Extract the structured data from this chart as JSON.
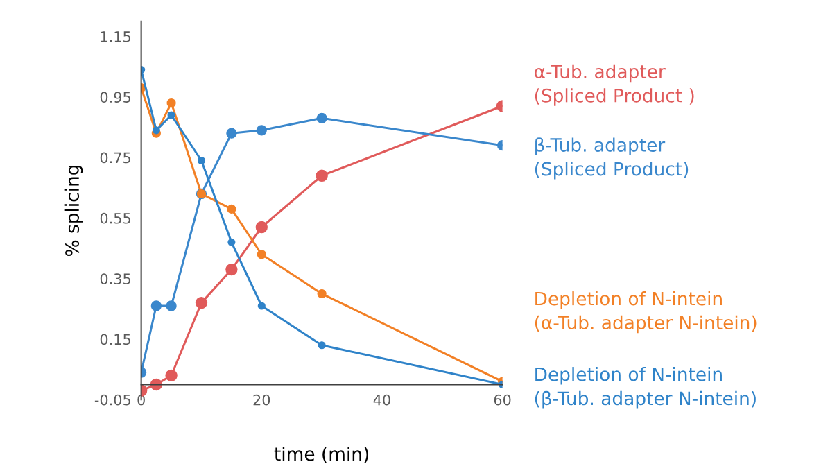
{
  "chart_data": {
    "type": "line",
    "xlabel": "time (min)",
    "ylabel": "% splicing",
    "x": [
      0,
      2.5,
      5,
      10,
      15,
      20,
      30,
      60
    ],
    "series": [
      {
        "name": "α-Tub. adapter\n(Spliced Product )",
        "color": "#e05a5a",
        "values": [
          -0.02,
          0.0,
          0.03,
          0.27,
          0.38,
          0.52,
          0.69,
          0.92
        ]
      },
      {
        "name": "β-Tub. adapter\n(Spliced Product)",
        "color": "#3a87cc",
        "values": [
          0.04,
          0.26,
          0.26,
          0.63,
          0.83,
          0.84,
          0.88,
          0.79
        ]
      },
      {
        "name": "Depletion of N-intein\n(α-Tub. adapter N-intein)",
        "color": "#f28026",
        "values": [
          0.98,
          0.83,
          0.93,
          0.63,
          0.58,
          0.43,
          0.3,
          0.01
        ]
      },
      {
        "name": "Depletion of N-intein\n(β-Tub. adapter N-intein)",
        "color": "#2f83c9",
        "values": [
          1.04,
          0.84,
          0.89,
          0.74,
          0.47,
          0.26,
          0.13,
          0.0
        ]
      }
    ],
    "xlim": [
      0,
      60
    ],
    "ylim": [
      -0.05,
      1.2
    ],
    "xticks": [
      0,
      20,
      40,
      60
    ],
    "yticks": [
      {
        "value": -0.05,
        "label": "-0.05"
      },
      0.15,
      0.35,
      0.55,
      0.75,
      0.95,
      1.15
    ],
    "marker": "circle",
    "line_style": "solid",
    "grid": false,
    "legend": "right"
  }
}
